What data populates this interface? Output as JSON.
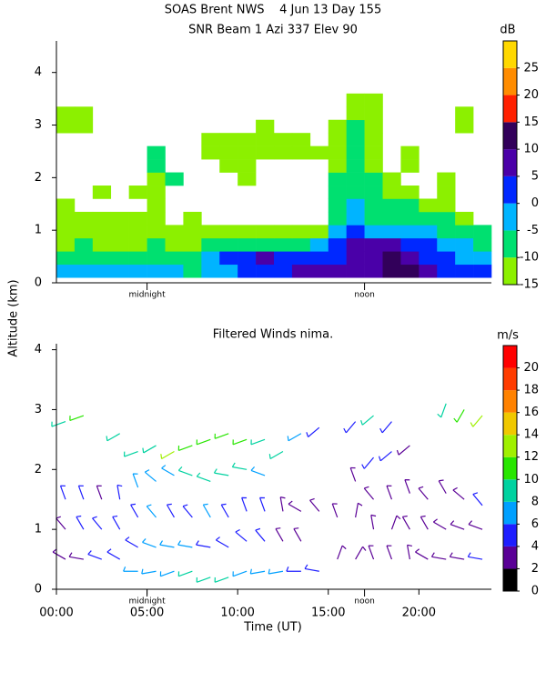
{
  "chart_data": [
    {
      "type": "heatmap",
      "title": "SOAS Brent NWS    4 Jun 13 Day 155",
      "subtitle": "SNR Beam 1 Azi 337 Elev 90",
      "ylabel": "Altitude (km)",
      "xlim": [
        0,
        24
      ],
      "ylim": [
        0,
        4.6
      ],
      "yticks": [
        0,
        1,
        2,
        3,
        4
      ],
      "local_time_marks": [
        {
          "value": 5,
          "label": "midnight"
        },
        {
          "value": 17,
          "label": "noon"
        }
      ],
      "colorbar": {
        "label": "dB",
        "lim": [
          -15,
          30
        ],
        "ticks": [
          -15,
          -10,
          -5,
          0,
          5,
          10,
          15,
          20,
          25
        ],
        "colors": [
          "#8cf000",
          "#00e070",
          "#00b4ff",
          "#0028ff",
          "#4a00a8",
          "#32005a",
          "#ff2000",
          "#ff8c00",
          "#ffd800"
        ]
      },
      "xbins": [
        0,
        1,
        2,
        3,
        4,
        5,
        6,
        7,
        8,
        9,
        10,
        11,
        12,
        13,
        14,
        15,
        16,
        17,
        18,
        19,
        20,
        21,
        22,
        23,
        24
      ],
      "ybins": [
        0.1,
        0.35,
        0.6,
        0.85,
        1.1,
        1.35,
        1.6,
        1.85,
        2.1,
        2.35,
        2.6,
        2.85,
        3.1,
        3.35,
        3.6
      ],
      "values": [
        [
          -3,
          -2,
          -4,
          -3,
          -2,
          -4,
          -5,
          -6,
          -4,
          -3,
          2,
          3,
          4,
          6,
          8,
          9,
          8,
          7,
          12,
          11,
          6,
          4,
          2,
          0
        ],
        [
          -8,
          -7,
          -8,
          -9,
          -8,
          -9,
          -8,
          -7,
          -3,
          2,
          4,
          5,
          3,
          2,
          0,
          4,
          7,
          8,
          11,
          9,
          4,
          2,
          -1,
          -3
        ],
        [
          -11,
          -10,
          -11,
          -12,
          -11,
          -10,
          -11,
          -12,
          -10,
          -8,
          -6,
          -7,
          -8,
          -6,
          -4,
          0,
          5,
          6,
          8,
          4,
          0,
          -2,
          -4,
          -6
        ],
        [
          -12,
          -13,
          -11,
          -12,
          -12,
          -13,
          -12,
          -11,
          -13,
          -12,
          -12,
          -13,
          -11,
          -12,
          -13,
          -5,
          2,
          -2,
          -3,
          -2,
          -4,
          -6,
          -8,
          -10
        ],
        [
          -13,
          -12,
          -13,
          -14,
          -13,
          -13,
          null,
          -14,
          null,
          null,
          null,
          null,
          null,
          null,
          null,
          -8,
          -4,
          -7,
          -9,
          -6,
          -8,
          -10,
          -11,
          null
        ],
        [
          -13,
          null,
          null,
          null,
          null,
          -12,
          null,
          null,
          null,
          null,
          null,
          null,
          null,
          null,
          null,
          -9,
          -5,
          -8,
          -10,
          -9,
          -11,
          -12,
          null,
          null
        ],
        [
          null,
          null,
          -14,
          null,
          -13,
          -13,
          null,
          null,
          null,
          null,
          null,
          null,
          null,
          null,
          null,
          -10,
          -6,
          -9,
          -12,
          -11,
          null,
          -12,
          null,
          null
        ],
        [
          null,
          null,
          null,
          null,
          null,
          -12,
          -10,
          null,
          null,
          null,
          -13,
          null,
          null,
          null,
          null,
          -10,
          -7,
          -10,
          -13,
          null,
          null,
          -13,
          null,
          null
        ],
        [
          null,
          null,
          null,
          null,
          null,
          -8,
          null,
          null,
          null,
          -14,
          -13,
          null,
          null,
          null,
          null,
          -11,
          -8,
          -11,
          null,
          -13,
          null,
          null,
          null,
          null
        ],
        [
          null,
          null,
          null,
          null,
          null,
          -9,
          null,
          null,
          -13,
          -12,
          -12,
          -13,
          -13,
          -12,
          -13,
          -11,
          -9,
          -12,
          null,
          -12,
          null,
          null,
          null,
          null
        ],
        [
          null,
          null,
          null,
          null,
          null,
          null,
          null,
          null,
          -13,
          -12,
          -13,
          -13,
          -12,
          -13,
          null,
          -12,
          -10,
          -12,
          null,
          null,
          null,
          null,
          null,
          null
        ],
        [
          -13,
          -12,
          null,
          null,
          null,
          null,
          null,
          null,
          null,
          null,
          null,
          -13,
          null,
          null,
          null,
          -12,
          -9,
          -11,
          null,
          null,
          null,
          null,
          -14,
          null
        ],
        [
          -12,
          -13,
          null,
          null,
          null,
          null,
          null,
          null,
          null,
          null,
          null,
          null,
          null,
          null,
          null,
          null,
          -11,
          -12,
          null,
          null,
          null,
          null,
          -13,
          null
        ],
        [
          null,
          null,
          null,
          null,
          null,
          null,
          null,
          null,
          null,
          null,
          null,
          null,
          null,
          null,
          null,
          null,
          -12,
          -13,
          null,
          null,
          null,
          null,
          null,
          null
        ]
      ]
    },
    {
      "type": "wind-barbs",
      "title": "Filtered Winds nima.",
      "xlabel": "Time (UT)",
      "xlim": [
        0,
        24
      ],
      "ylim": [
        0,
        4.1
      ],
      "yticks": [
        0,
        1,
        2,
        3,
        4
      ],
      "xticks": [
        {
          "value": 0,
          "label": "00:00"
        },
        {
          "value": 5,
          "label": "05:00"
        },
        {
          "value": 10,
          "label": "10:00"
        },
        {
          "value": 15,
          "label": "15:00"
        },
        {
          "value": 20,
          "label": "20:00"
        }
      ],
      "local_time_marks": [
        {
          "value": 5,
          "label": "midnight"
        },
        {
          "value": 17,
          "label": "noon"
        }
      ],
      "colorbar": {
        "label": "m/s",
        "lim": [
          0,
          22
        ],
        "ticks": [
          0,
          2,
          4,
          6,
          8,
          10,
          12,
          14,
          16,
          18,
          20
        ],
        "colors": [
          "#000000",
          "#5a0096",
          "#1e1eff",
          "#00a0ff",
          "#00d2a0",
          "#28e600",
          "#a0f000",
          "#f0c800",
          "#ff8200",
          "#ff3c00",
          "#ff0000"
        ]
      },
      "time": [
        0.5,
        0.5,
        0.5,
        0.5,
        1.5,
        1.5,
        1.5,
        1.5,
        2.5,
        2.5,
        2.5,
        3.5,
        3.5,
        3.5,
        3.5,
        4.5,
        4.5,
        4.5,
        4.5,
        4.5,
        5.5,
        5.5,
        5.5,
        5.5,
        5.5,
        6.5,
        6.5,
        6.5,
        6.5,
        6.5,
        7.5,
        7.5,
        7.5,
        7.5,
        7.5,
        8.5,
        8.5,
        8.5,
        8.5,
        8.5,
        9.5,
        9.5,
        9.5,
        9.5,
        9.5,
        10.5,
        10.5,
        10.5,
        10.5,
        10.5,
        11.5,
        11.5,
        11.5,
        11.5,
        11.5,
        12.5,
        12.5,
        12.5,
        12.5,
        13.5,
        13.5,
        13.5,
        13.5,
        14.5,
        14.5,
        14.5,
        15.5,
        15.5,
        16.5,
        16.5,
        16.5,
        16.5,
        17.5,
        17.5,
        17.5,
        17.5,
        17.5,
        18.5,
        18.5,
        18.5,
        18.5,
        18.5,
        19.5,
        19.5,
        19.5,
        19.5,
        20.5,
        20.5,
        20.5,
        21.5,
        21.5,
        21.5,
        21.5,
        22.5,
        22.5,
        22.5,
        22.5,
        23.5,
        23.5,
        23.5,
        23.5
      ],
      "altitude": [
        0.5,
        1.0,
        1.5,
        2.8,
        0.5,
        1.0,
        1.5,
        2.9,
        0.5,
        1.0,
        1.5,
        0.5,
        1.0,
        1.5,
        2.6,
        0.3,
        0.7,
        1.2,
        1.7,
        2.3,
        0.3,
        0.7,
        1.2,
        1.8,
        2.4,
        0.3,
        0.7,
        1.2,
        1.9,
        2.3,
        0.3,
        0.7,
        1.2,
        1.9,
        2.4,
        0.2,
        0.7,
        1.2,
        1.8,
        2.5,
        0.2,
        0.7,
        1.2,
        1.9,
        2.6,
        0.3,
        0.8,
        1.3,
        2.0,
        2.5,
        0.3,
        0.8,
        1.3,
        1.9,
        2.5,
        0.3,
        0.8,
        1.3,
        2.3,
        0.3,
        0.8,
        1.3,
        2.6,
        0.3,
        1.3,
        2.7,
        0.5,
        1.2,
        0.5,
        1.2,
        1.8,
        2.8,
        0.5,
        1.0,
        1.5,
        2.2,
        2.9,
        0.5,
        1.0,
        1.5,
        2.3,
        2.8,
        0.5,
        1.0,
        1.6,
        2.4,
        0.5,
        1.0,
        1.5,
        0.5,
        1.0,
        1.6,
        3.1,
        0.5,
        1.0,
        1.5,
        3.0,
        0.5,
        1.0,
        1.4,
        2.9
      ],
      "speed": [
        3,
        3,
        4,
        9,
        3,
        4,
        4,
        10,
        4,
        4,
        3,
        5,
        5,
        4,
        8,
        7,
        5,
        5,
        6,
        8,
        7,
        6,
        6,
        7,
        9,
        7,
        6,
        5,
        7,
        12,
        8,
        6,
        5,
        8,
        10,
        8,
        5,
        6,
        8,
        10,
        8,
        5,
        5,
        9,
        11,
        7,
        4,
        4,
        8,
        10,
        6,
        4,
        4,
        6,
        9,
        6,
        3,
        3,
        8,
        5,
        3,
        3,
        6,
        4,
        3,
        4,
        3,
        3,
        3,
        2,
        3,
        4,
        3,
        3,
        3,
        4,
        8,
        3,
        2,
        3,
        4,
        4,
        3,
        3,
        3,
        3,
        3,
        3,
        3,
        3,
        3,
        3,
        9,
        3,
        3,
        3,
        11,
        4,
        3,
        4,
        13
      ],
      "direction": [
        300,
        320,
        340,
        250,
        280,
        330,
        340,
        250,
        290,
        320,
        340,
        300,
        330,
        350,
        240,
        270,
        300,
        330,
        340,
        250,
        260,
        290,
        320,
        310,
        240,
        250,
        280,
        330,
        300,
        240,
        250,
        280,
        320,
        290,
        250,
        250,
        280,
        330,
        290,
        250,
        250,
        300,
        330,
        280,
        250,
        250,
        310,
        340,
        280,
        250,
        260,
        320,
        340,
        290,
        250,
        260,
        330,
        350,
        240,
        270,
        330,
        300,
        240,
        280,
        320,
        230,
        20,
        340,
        30,
        10,
        340,
        220,
        340,
        350,
        320,
        220,
        230,
        340,
        20,
        340,
        230,
        220,
        350,
        330,
        340,
        230,
        300,
        330,
        320,
        280,
        300,
        330,
        200,
        280,
        290,
        310,
        210,
        280,
        290,
        320,
        220
      ]
    }
  ]
}
